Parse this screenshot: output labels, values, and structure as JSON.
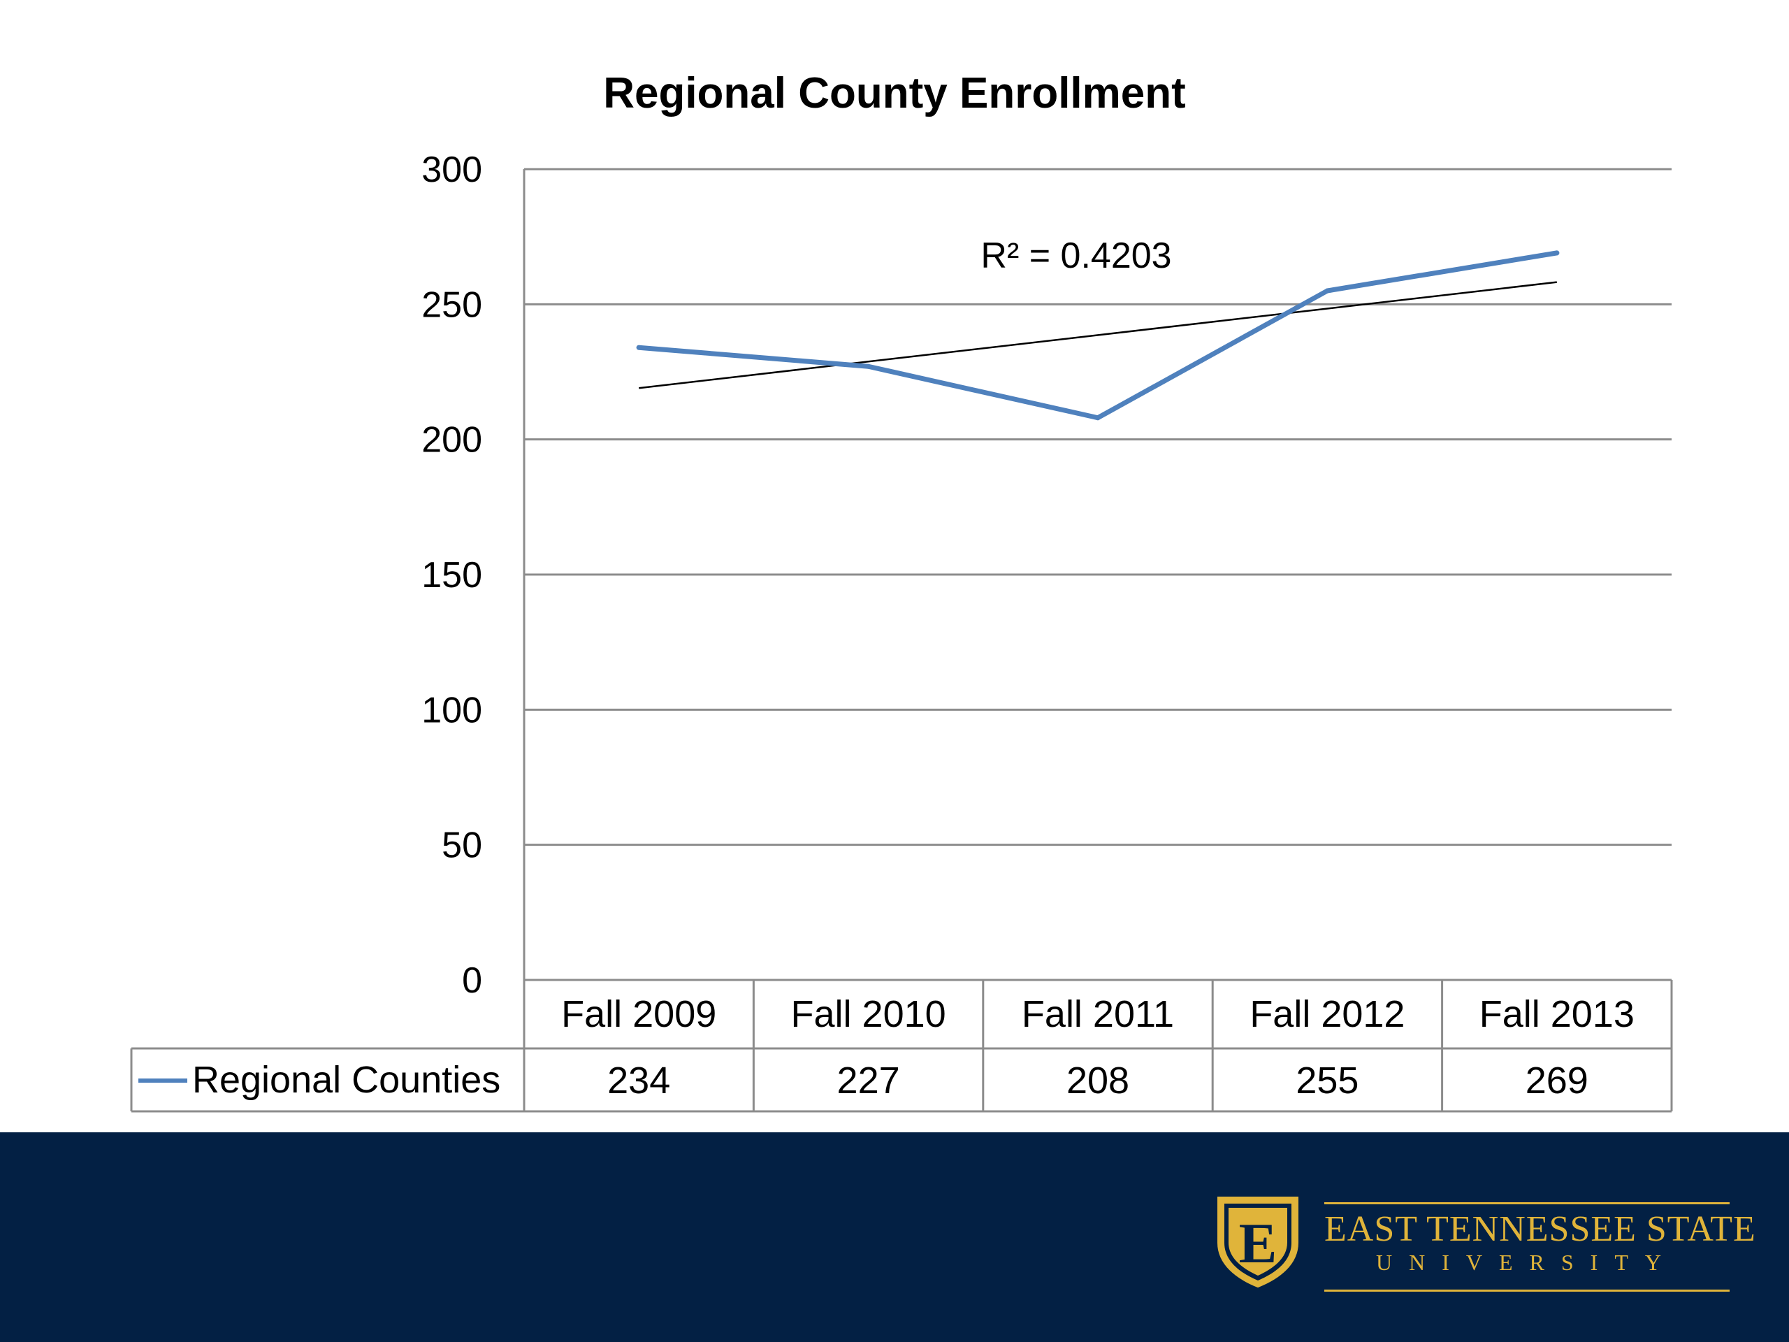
{
  "chart_data": {
    "type": "line",
    "title": "Regional County Enrollment",
    "categories": [
      "Fall 2009",
      "Fall 2010",
      "Fall 2011",
      "Fall 2012",
      "Fall 2013"
    ],
    "series": [
      {
        "name": "Regional Counties",
        "values": [
          234,
          227,
          208,
          255,
          269
        ],
        "color": "#4f81bd"
      }
    ],
    "trendline": {
      "type": "linear",
      "label": "R² = 0.4203",
      "color": "#000000"
    },
    "yticks": [
      "0",
      "50",
      "100",
      "150",
      "200",
      "250",
      "300"
    ],
    "ylim": [
      0,
      300
    ],
    "grid": true,
    "legend": "data-table",
    "data_table_values": [
      "234",
      "227",
      "208",
      "255",
      "269"
    ]
  },
  "branding": {
    "university_line1": "EAST TENNESSEE STATE",
    "university_line2": "UNIVERSITY",
    "logo_letter": "E",
    "footer_color": "#032044",
    "accent_color": "#e0b43a"
  }
}
